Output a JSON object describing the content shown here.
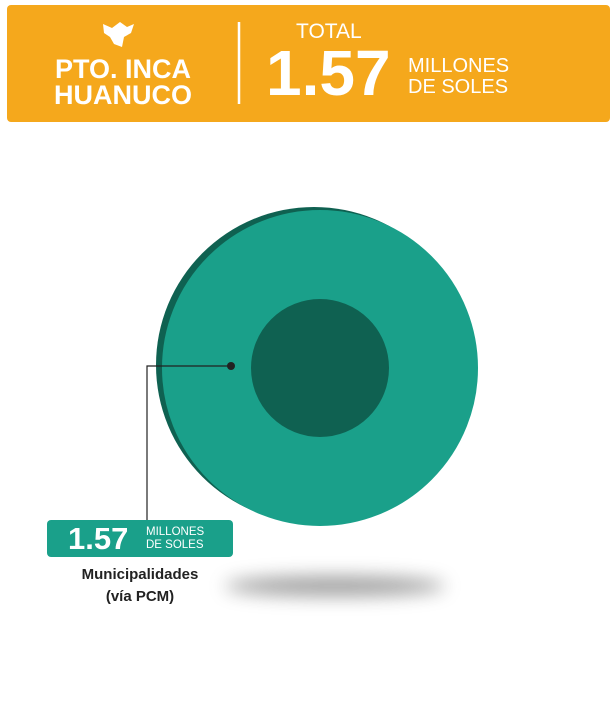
{
  "header": {
    "title": "PTO. INCA\nHUANUCO",
    "total_label": "TOTAL",
    "total_value": 1.57,
    "unit": "MILLONES\nDE SOLES"
  },
  "chart_data": {
    "type": "donut",
    "categories": [
      "Municipalidades\n(vía PCM)"
    ],
    "values": [
      1.57
    ],
    "colors": [
      "#1aa08a"
    ],
    "value_unit": "MILLONES\nDE SOLES"
  }
}
